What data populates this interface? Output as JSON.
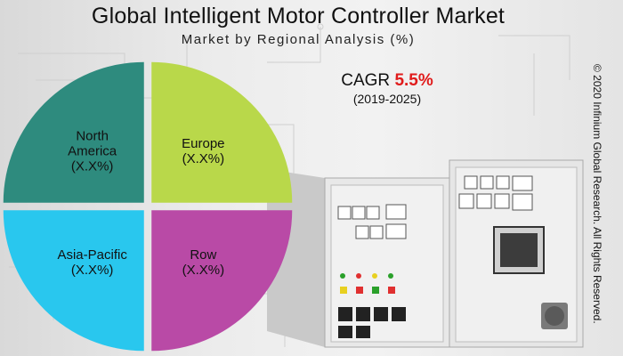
{
  "header": {
    "title": "Global Intelligent Motor Controller Market",
    "subtitle": "Market by Regional Analysis (%)"
  },
  "cagr": {
    "label": "CAGR",
    "value": "5.5%",
    "period": "(2019-2025)"
  },
  "copyright": "© 2020 Infinium Global Research. All Rights Reserved.",
  "chart_data": {
    "type": "pie",
    "categories": [
      "North America",
      "Europe",
      "Asia-Pacific",
      "Row"
    ],
    "value_labels": [
      "(X.X%)",
      "(X.X%)",
      "(X.X%)",
      "(X.X%)"
    ],
    "values": [
      25,
      25,
      25,
      25
    ],
    "slice_labels": [
      [
        "North",
        "America",
        "(X.X%)"
      ],
      [
        "Europe",
        "(X.X%)"
      ],
      [
        "Asia-Pacific",
        "(X.X%)"
      ],
      [
        "Row",
        "(X.X%)"
      ]
    ],
    "colors": [
      "#2e8b7e",
      "#b9d84a",
      "#29c7ee",
      "#b94aa6"
    ],
    "exploded": true
  }
}
